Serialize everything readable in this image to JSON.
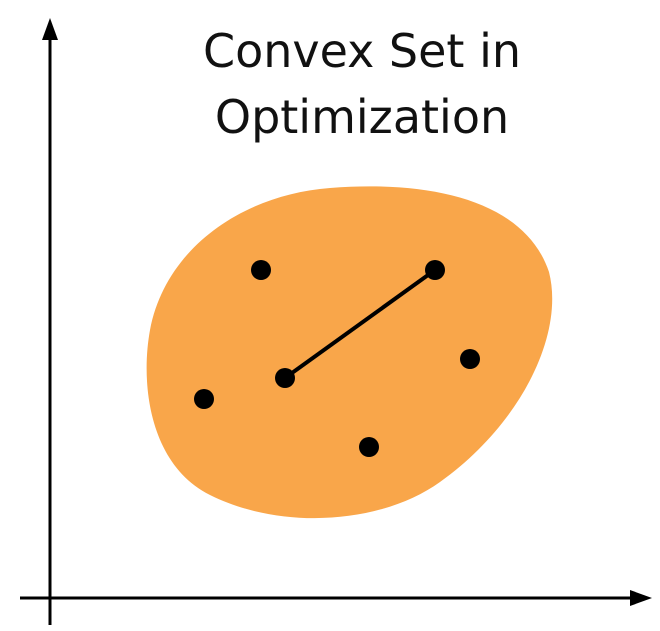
{
  "title": {
    "line1": "Convex Set in",
    "line2": "Optimization"
  },
  "colors": {
    "set_fill": "#F9A64A",
    "ink": "#000000"
  },
  "set_points": 6,
  "segment": "line segment between two points in the set"
}
